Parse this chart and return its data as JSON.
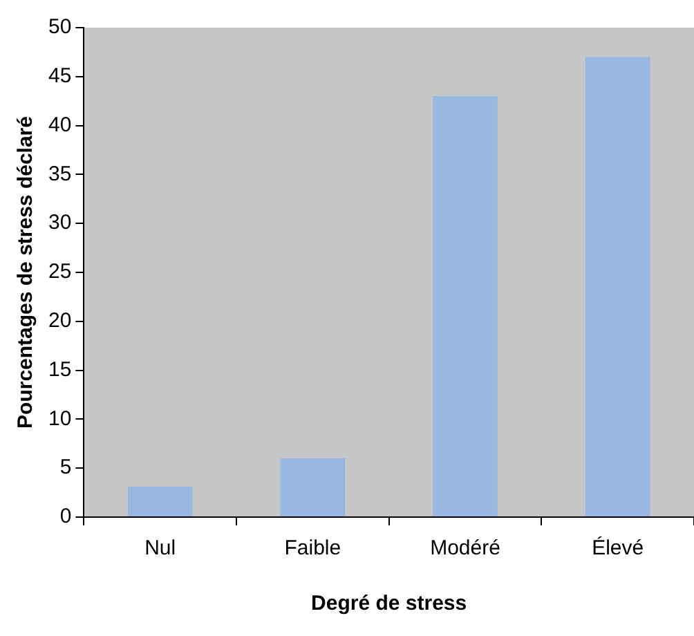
{
  "chart_data": {
    "type": "bar",
    "xlabel": "Degré de stress",
    "ylabel": "Pourcentages de stress déclaré",
    "categories": [
      "Nul",
      "Faible",
      "Modéré",
      "Élevé"
    ],
    "values": [
      3.1,
      6,
      43,
      47
    ],
    "color": "#98b8e0",
    "ylim": [
      0,
      50
    ],
    "yticks": [
      0,
      5,
      10,
      15,
      20,
      25,
      30,
      35,
      40,
      45,
      50
    ],
    "grid": false,
    "legend": false
  }
}
